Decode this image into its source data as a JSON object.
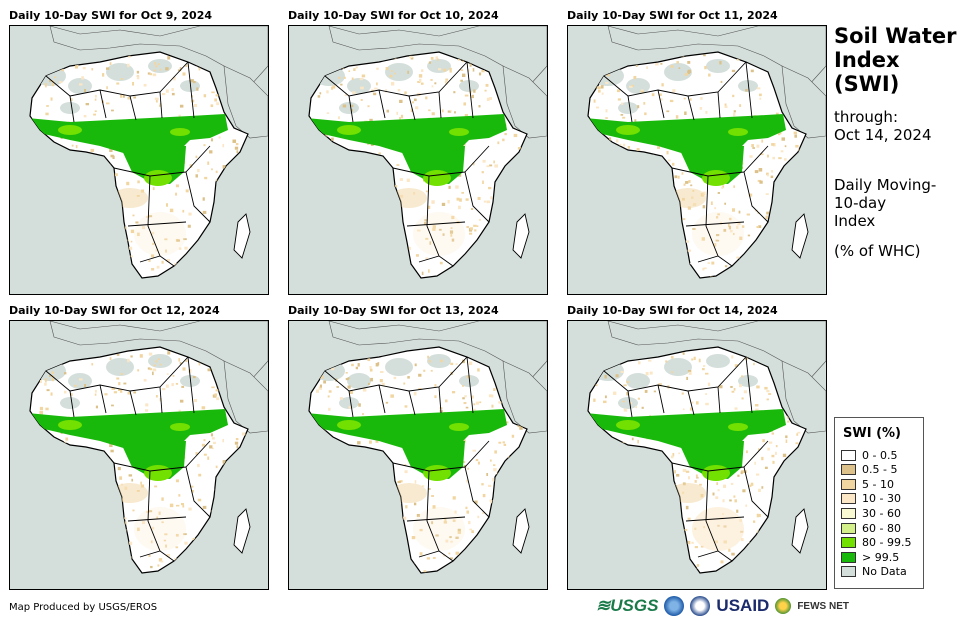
{
  "panels": [
    {
      "title": "Daily 10-Day SWI for Oct 9, 2024"
    },
    {
      "title": "Daily 10-Day SWI for Oct 10, 2024"
    },
    {
      "title": "Daily 10-Day SWI for Oct 11, 2024"
    },
    {
      "title": "Daily 10-Day SWI for Oct 12, 2024"
    },
    {
      "title": "Daily 10-Day SWI for Oct 13, 2024"
    },
    {
      "title": "Daily 10-Day SWI for Oct 14, 2024"
    }
  ],
  "side": {
    "title_line1": "Soil Water",
    "title_line2": "Index",
    "title_line3": "(SWI)",
    "through_label": "through:",
    "through_date": "Oct 14, 2024",
    "desc_line1": "Daily Moving-",
    "desc_line2": "10-day",
    "desc_line3": "Index",
    "units": "(% of WHC)"
  },
  "legend": {
    "title": "SWI (%)",
    "items": [
      {
        "label": "0 - 0.5",
        "color": "#ffffff"
      },
      {
        "label": "0.5 - 5",
        "color": "#dcc28a"
      },
      {
        "label": "5 - 10",
        "color": "#f2d6a2"
      },
      {
        "label": "10 - 30",
        "color": "#fbe7c6"
      },
      {
        "label": "30 - 60",
        "color": "#fafad2"
      },
      {
        "label": "60 - 80",
        "color": "#d4f08a"
      },
      {
        "label": "80 - 99.5",
        "color": "#72e000"
      },
      {
        "label": "> 99.5",
        "color": "#19b90b"
      },
      {
        "label": "No Data",
        "color": "#d4dfdb"
      }
    ]
  },
  "footer": {
    "credit": "Map Produced by USGS/EROS",
    "logo_usgs": "≋USGS",
    "logo_usaid": "USAID",
    "logo_fews": "FEWS NET"
  }
}
